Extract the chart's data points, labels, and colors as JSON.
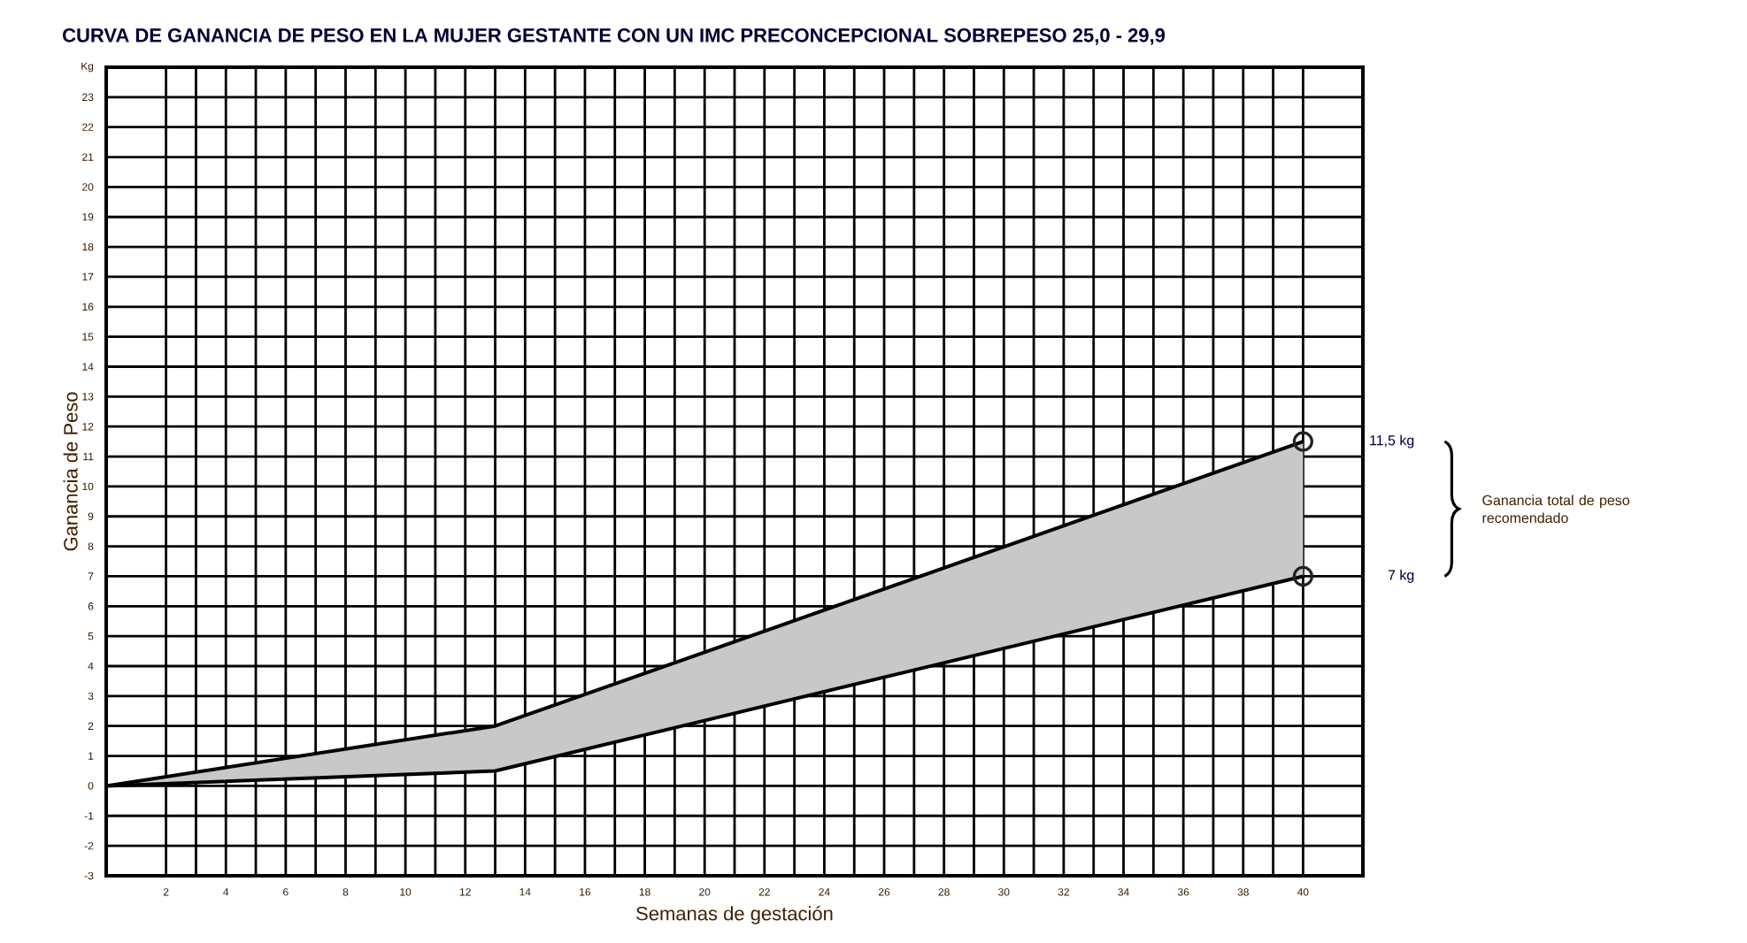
{
  "chart_data": {
    "type": "area",
    "title": "CURVA DE GANANCIA DE PESO EN LA MUJER GESTANTE CON UN IMC PRECONCEPCIONAL SOBREPESO 25,0 - 29,9",
    "xlabel": "Semanas de gestación",
    "ylabel": "Ganancia de Peso",
    "xlim": [
      0,
      42
    ],
    "xticks": [
      2,
      4,
      6,
      8,
      10,
      12,
      14,
      16,
      18,
      20,
      22,
      24,
      26,
      28,
      30,
      32,
      34,
      36,
      38,
      40
    ],
    "ylim": [
      -3,
      24
    ],
    "yticks": [
      -3,
      -2,
      -1,
      0,
      1,
      2,
      3,
      4,
      5,
      6,
      7,
      8,
      9,
      10,
      11,
      12,
      13,
      14,
      15,
      16,
      17,
      18,
      19,
      20,
      21,
      22,
      23,
      {
        "value": 24,
        "label": "Kg"
      }
    ],
    "grid": true,
    "series": [
      {
        "color": "#c8c8c8",
        "x": [
          0,
          13,
          40
        ],
        "values": [
          0,
          2,
          11.5
        ]
      },
      {
        "type": "line",
        "color": "#000000",
        "x": [
          0,
          13,
          40
        ],
        "values": [
          0,
          0.5,
          7
        ]
      },
      {
        "type": "scatter",
        "color": "#222222",
        "marker": "circle",
        "x": [
          40,
          40
        ],
        "values": [
          11.5,
          7
        ]
      }
    ],
    "annotations": [
      "11,5 kg",
      "7 kg",
      "Ganancia total de peso recomendado"
    ]
  }
}
